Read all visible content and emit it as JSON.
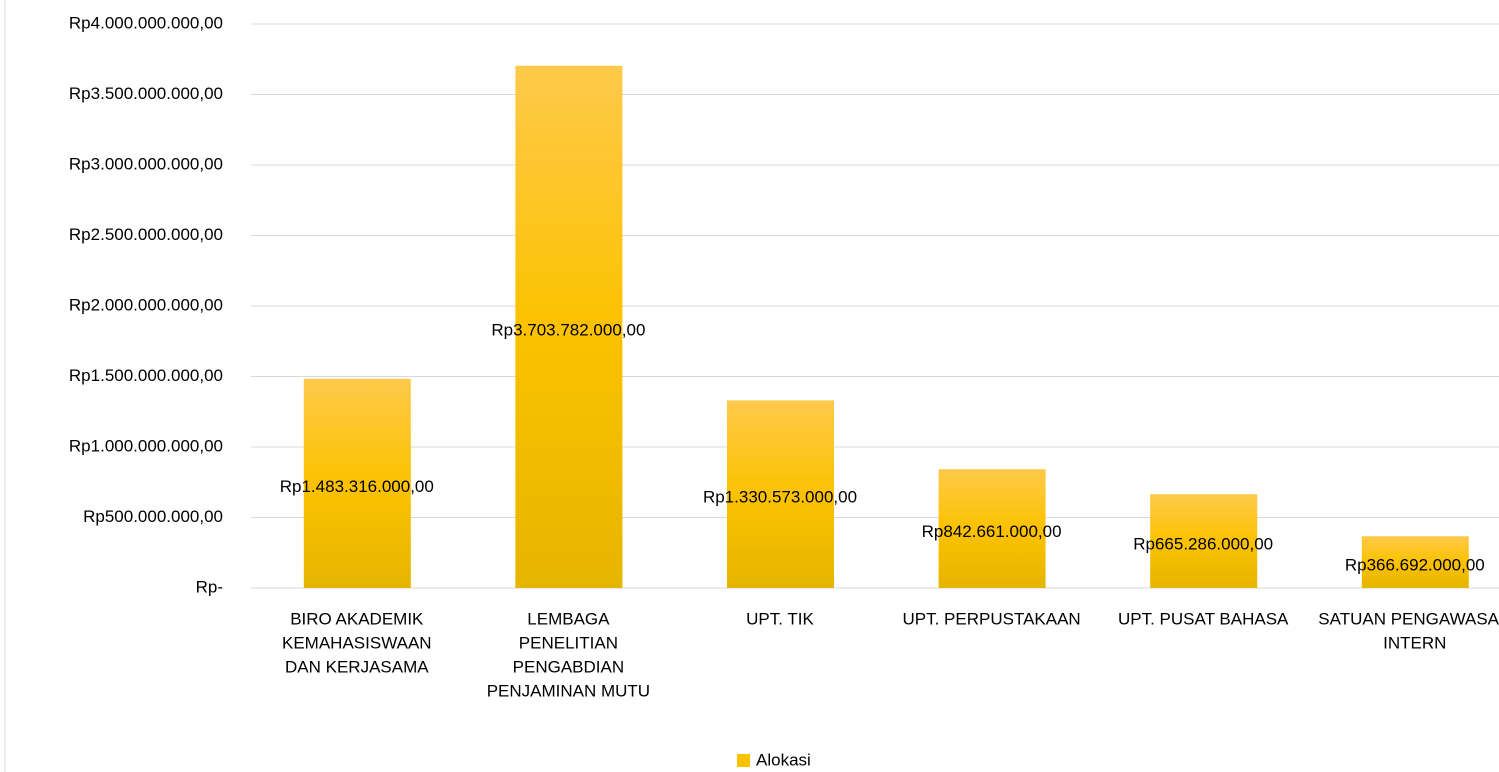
{
  "chart_data": {
    "type": "bar",
    "categories": [
      [
        "BIRO AKADEMIK",
        "KEMAHASISWAAN",
        "DAN KERJASAMA"
      ],
      [
        "LEMBAGA",
        "PENELITIAN",
        "PENGABDIAN",
        "PENJAMINAN MUTU"
      ],
      [
        "UPT. TIK"
      ],
      [
        "UPT. PERPUSTAKAAN"
      ],
      [
        "UPT. PUSAT BAHASA"
      ],
      [
        "SATUAN PENGAWASAN",
        "INTERN"
      ]
    ],
    "series": [
      {
        "name": "Alokasi",
        "color": "#fcc200",
        "values": [
          1483316000,
          3703782000,
          1330573000,
          842661000,
          665286000,
          366692000
        ],
        "value_labels": [
          "Rp1.483.316.000,00",
          "Rp3.703.782.000,00",
          "Rp1.330.573.000,00",
          "Rp842.661.000,00",
          "Rp665.286.000,00",
          "Rp366.692.000,00"
        ]
      }
    ],
    "ylim": [
      0,
      4000000000
    ],
    "yticks": [
      {
        "value": 0,
        "label": "Rp-"
      },
      {
        "value": 500000000,
        "label": "Rp500.000.000,00"
      },
      {
        "value": 1000000000,
        "label": "Rp1.000.000.000,00"
      },
      {
        "value": 1500000000,
        "label": "Rp1.500.000.000,00"
      },
      {
        "value": 2000000000,
        "label": "Rp2.000.000.000,00"
      },
      {
        "value": 2500000000,
        "label": "Rp2.500.000.000,00"
      },
      {
        "value": 3000000000,
        "label": "Rp3.000.000.000,00"
      },
      {
        "value": 3500000000,
        "label": "Rp3.500.000.000,00"
      },
      {
        "value": 4000000000,
        "label": "Rp4.000.000.000,00"
      }
    ],
    "grid": true,
    "legend": "bottom"
  }
}
